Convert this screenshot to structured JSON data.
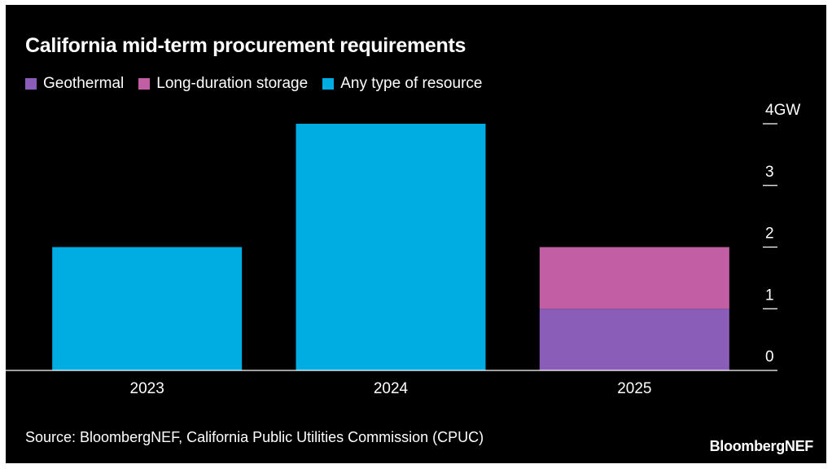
{
  "chart_data": {
    "type": "bar",
    "stacked": true,
    "title": "California mid-term procurement requirements",
    "categories": [
      "2023",
      "2024",
      "2025"
    ],
    "series": [
      {
        "name": "Geothermal",
        "color": "#8a5db8",
        "values": [
          0,
          0,
          1
        ]
      },
      {
        "name": "Long-duration storage",
        "color": "#c25ea3",
        "values": [
          0,
          0,
          1
        ]
      },
      {
        "name": "Any type of resource",
        "color": "#00ade3",
        "values": [
          2,
          4,
          0
        ]
      }
    ],
    "y_ticks": [
      {
        "value": 0,
        "label": "0"
      },
      {
        "value": 1,
        "label": "1"
      },
      {
        "value": 2,
        "label": "2"
      },
      {
        "value": 3,
        "label": "3"
      },
      {
        "value": 4,
        "label": "4GW"
      }
    ],
    "ylim": [
      0,
      4
    ],
    "yaxis_position": "right",
    "legend_position": "top-left",
    "grid": false
  },
  "source": "Source: BloombergNEF, California Public Utilities Commission (CPUC)",
  "brand": "BloombergNEF"
}
